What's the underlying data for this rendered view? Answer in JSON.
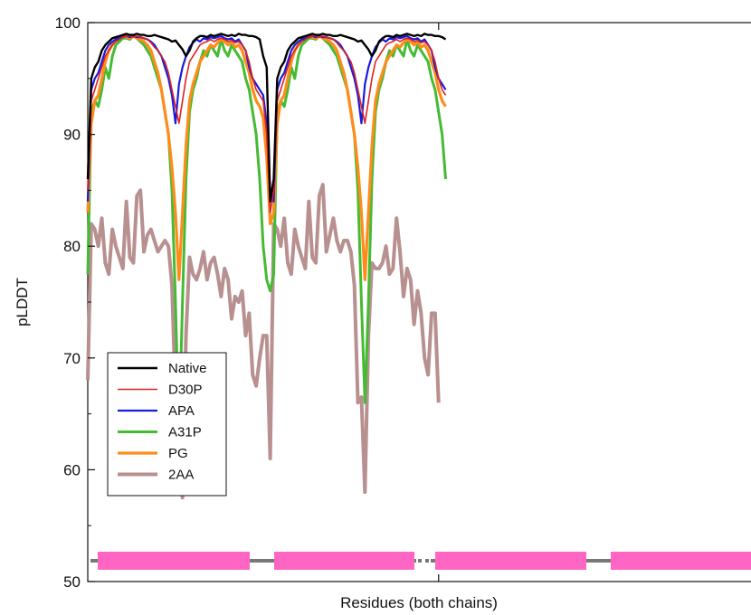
{
  "chart_data": {
    "type": "line",
    "title": "",
    "xlabel": "Residues (both chains)",
    "ylabel": "pLDDT",
    "ylim": [
      50,
      100
    ],
    "xlim": [
      0,
      196
    ],
    "yticks": [
      50,
      60,
      70,
      80,
      90,
      100
    ],
    "xticks": [
      100
    ],
    "grid": false,
    "legend_position": "lower-left",
    "series": [
      {
        "name": "Native",
        "color": "#000000",
        "values": [
          86.0,
          95.0,
          96.0,
          96.5,
          97.5,
          98.0,
          98.3,
          98.6,
          98.7,
          98.8,
          98.9,
          99.0,
          98.9,
          98.9,
          99.0,
          98.9,
          98.9,
          98.8,
          98.8,
          98.9,
          98.8,
          98.7,
          98.6,
          98.5,
          98.3,
          98.4,
          98.0,
          97.6,
          97.0,
          97.5,
          98.3,
          98.6,
          98.8,
          98.8,
          98.7,
          98.9,
          98.8,
          98.9,
          99.0,
          98.9,
          98.8,
          98.9,
          98.8,
          99.0,
          98.9,
          98.9,
          98.8,
          98.8,
          98.7,
          98.5,
          97.0,
          96.0,
          84.0,
          86.0,
          95.0,
          96.0,
          96.5,
          97.5,
          98.0,
          98.3,
          98.6,
          98.7,
          98.8,
          98.9,
          99.0,
          98.9,
          98.9,
          99.0,
          98.9,
          98.9,
          98.8,
          98.8,
          98.9,
          98.8,
          98.7,
          98.6,
          98.5,
          98.3,
          98.4,
          98.0,
          97.6,
          97.0,
          97.5,
          98.3,
          98.6,
          98.8,
          98.8,
          98.7,
          98.9,
          98.8,
          98.9,
          99.0,
          98.9,
          98.8,
          98.9,
          98.8,
          99.0,
          98.9,
          98.9,
          98.8,
          98.8,
          98.7,
          98.5
        ]
      },
      {
        "name": "D30P",
        "color": "#dd2222",
        "values": [
          85.0,
          93.0,
          94.0,
          95.0,
          96.0,
          97.0,
          97.5,
          98.0,
          98.3,
          98.5,
          98.7,
          98.8,
          98.8,
          98.7,
          98.8,
          98.7,
          98.6,
          98.5,
          98.2,
          97.8,
          97.5,
          97.0,
          96.5,
          95.5,
          94.0,
          92.5,
          91.0,
          93.0,
          95.0,
          96.5,
          97.0,
          97.5,
          98.0,
          98.2,
          98.3,
          98.5,
          98.3,
          98.5,
          98.6,
          98.5,
          98.3,
          98.4,
          98.2,
          98.3,
          98.0,
          97.5,
          96.5,
          95.0,
          94.0,
          93.5,
          93.0,
          90.0,
          83.0,
          85.0,
          93.0,
          94.0,
          95.0,
          96.0,
          97.0,
          97.5,
          98.0,
          98.3,
          98.5,
          98.7,
          98.8,
          98.8,
          98.7,
          98.8,
          98.7,
          98.6,
          98.5,
          98.2,
          97.8,
          97.5,
          97.0,
          96.5,
          95.5,
          94.0,
          92.5,
          91.0,
          93.0,
          95.0,
          96.5,
          97.0,
          97.5,
          98.0,
          98.2,
          98.3,
          98.5,
          98.3,
          98.5,
          98.6,
          98.5,
          98.3,
          98.4,
          98.2,
          98.3,
          98.0,
          97.5,
          96.5,
          95.0,
          94.0,
          93.5
        ]
      },
      {
        "name": "APA",
        "color": "#1a1adf",
        "values": [
          84.0,
          94.0,
          95.0,
          95.5,
          96.5,
          97.5,
          98.0,
          98.3,
          98.5,
          98.6,
          98.7,
          98.8,
          98.7,
          98.8,
          98.7,
          98.7,
          98.6,
          98.5,
          98.3,
          98.0,
          97.5,
          97.0,
          96.0,
          95.0,
          93.5,
          91.0,
          94.5,
          96.0,
          97.0,
          97.8,
          98.2,
          98.5,
          98.3,
          98.6,
          98.5,
          98.7,
          98.6,
          98.7,
          98.8,
          98.6,
          98.5,
          98.6,
          98.3,
          98.5,
          98.0,
          97.5,
          96.0,
          95.0,
          94.5,
          94.0,
          93.5,
          91.0,
          85.0,
          84.0,
          94.0,
          95.0,
          95.5,
          96.5,
          97.5,
          98.0,
          98.3,
          98.5,
          98.6,
          98.7,
          98.8,
          98.7,
          98.8,
          98.7,
          98.7,
          98.6,
          98.5,
          98.3,
          98.0,
          97.5,
          97.0,
          96.0,
          95.0,
          93.5,
          91.0,
          94.5,
          96.0,
          97.0,
          97.8,
          98.2,
          98.5,
          98.3,
          98.6,
          98.5,
          98.7,
          98.6,
          98.7,
          98.8,
          98.6,
          98.5,
          98.6,
          98.3,
          98.5,
          98.0,
          97.5,
          96.0,
          95.0,
          94.5,
          94.0
        ]
      },
      {
        "name": "A31P",
        "color": "#44bb33",
        "values": [
          77.5,
          92.0,
          93.0,
          92.5,
          94.0,
          96.0,
          95.0,
          97.0,
          98.0,
          98.3,
          98.6,
          98.6,
          98.5,
          98.8,
          98.6,
          98.3,
          98.0,
          97.5,
          97.0,
          96.0,
          95.0,
          94.0,
          92.0,
          90.0,
          85.0,
          75.0,
          63.0,
          75.0,
          86.0,
          92.0,
          94.0,
          95.0,
          96.5,
          97.5,
          97.0,
          98.0,
          97.5,
          97.0,
          98.5,
          97.5,
          97.0,
          98.0,
          97.5,
          97.0,
          96.5,
          95.0,
          94.0,
          92.0,
          90.0,
          86.0,
          80.0,
          77.0,
          76.0,
          77.5,
          92.0,
          93.0,
          92.5,
          94.0,
          96.0,
          95.0,
          97.0,
          98.0,
          98.3,
          98.6,
          98.6,
          98.5,
          98.8,
          98.6,
          98.3,
          98.0,
          97.5,
          97.0,
          96.0,
          95.0,
          94.0,
          92.0,
          90.0,
          85.0,
          75.0,
          66.0,
          75.0,
          86.0,
          92.0,
          94.0,
          95.0,
          96.5,
          97.5,
          97.0,
          98.0,
          97.5,
          97.0,
          98.5,
          97.5,
          97.0,
          98.0,
          97.5,
          97.0,
          96.5,
          95.0,
          94.0,
          92.0,
          90.0,
          86.0
        ]
      },
      {
        "name": "PG",
        "color": "#ff8c1a",
        "values": [
          83.0,
          91.0,
          93.0,
          93.5,
          95.0,
          96.5,
          97.5,
          98.0,
          98.5,
          98.6,
          98.8,
          98.7,
          98.6,
          98.8,
          98.6,
          98.5,
          98.3,
          98.0,
          97.5,
          96.5,
          95.5,
          94.0,
          92.0,
          90.0,
          87.0,
          83.0,
          77.0,
          83.0,
          89.0,
          93.0,
          94.5,
          95.5,
          96.5,
          97.0,
          97.5,
          98.0,
          97.8,
          98.2,
          98.5,
          98.3,
          98.0,
          98.3,
          97.8,
          98.0,
          97.5,
          96.5,
          95.5,
          94.0,
          93.0,
          92.5,
          91.5,
          88.0,
          82.0,
          83.0,
          91.0,
          93.0,
          93.5,
          95.0,
          96.5,
          97.5,
          98.0,
          98.5,
          98.6,
          98.8,
          98.7,
          98.6,
          98.8,
          98.6,
          98.5,
          98.3,
          98.0,
          97.5,
          96.5,
          95.5,
          94.0,
          92.0,
          90.0,
          87.0,
          83.0,
          77.0,
          83.0,
          89.0,
          93.0,
          94.5,
          95.5,
          96.5,
          97.0,
          97.5,
          98.0,
          97.8,
          98.2,
          98.5,
          98.3,
          98.0,
          98.3,
          97.8,
          98.0,
          97.5,
          96.5,
          95.5,
          94.0,
          93.0,
          92.5
        ]
      },
      {
        "name": "2AA",
        "color": "#b89090",
        "values": [
          68.0,
          82.0,
          81.5,
          80.0,
          82.5,
          78.5,
          77.5,
          81.5,
          80.0,
          79.0,
          78.0,
          84.0,
          79.0,
          78.5,
          84.5,
          85.0,
          79.5,
          81.0,
          81.5,
          80.5,
          79.5,
          80.0,
          80.5,
          80.0,
          76.5,
          66.5,
          67.0,
          57.5,
          72.0,
          79.0,
          77.5,
          77.0,
          78.0,
          79.5,
          77.0,
          78.5,
          79.0,
          77.5,
          75.5,
          78.0,
          77.0,
          73.5,
          75.5,
          75.0,
          76.0,
          72.0,
          74.0,
          68.5,
          67.5,
          70.0,
          72.0,
          72.0,
          61.0,
          82.0,
          81.5,
          80.0,
          82.5,
          78.5,
          77.5,
          81.5,
          80.0,
          79.0,
          78.0,
          84.0,
          79.0,
          78.5,
          84.5,
          85.5,
          79.5,
          81.0,
          82.5,
          80.5,
          79.5,
          80.5,
          80.5,
          79.5,
          76.5,
          66.0,
          66.5,
          58.0,
          72.0,
          78.5,
          78.0,
          78.0,
          78.5,
          80.0,
          77.5,
          78.0,
          82.5,
          79.5,
          75.5,
          78.0,
          77.0,
          73.0,
          76.0,
          74.0,
          70.0,
          68.5,
          74.0,
          74.0,
          66.0
        ]
      }
    ]
  }
}
